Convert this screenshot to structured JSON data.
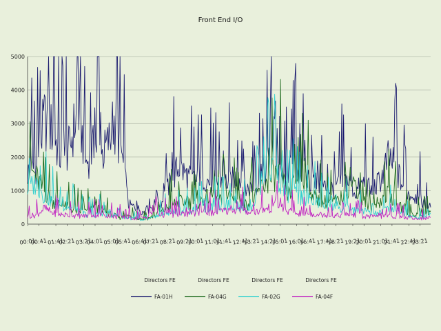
{
  "chart_data": {
    "type": "line",
    "title": "Front End I/O",
    "xlabel": "",
    "ylabel": "",
    "ylim": [
      0,
      5000
    ],
    "yticks": [
      0,
      1000,
      2000,
      3000,
      4000,
      5000
    ],
    "grid": true,
    "legend_position": "bottom",
    "x_tick_labels": [
      "00:01",
      "00:41",
      "01:41",
      "02:21",
      "03:21",
      "04:01",
      "05:01",
      "05:41",
      "06:41",
      "07:21",
      "08:21",
      "09:21",
      "10:01",
      "11:01",
      "11:41",
      "12:41",
      "13:21",
      "14:21",
      "15:01",
      "16:01",
      "16:41",
      "17:41",
      "18:21",
      "19:21",
      "20:01",
      "21:01",
      "21:41",
      "22:41",
      "23:21"
    ],
    "x_tick_times": [
      "00:01",
      "00:41",
      "01:41",
      "02:21",
      "03:21",
      "04:01",
      "05:01",
      "05:41",
      "06:41",
      "07:21",
      "08:21",
      "09:21",
      "10:01",
      "11:01",
      "11:41",
      "12:41",
      "13:21",
      "14:21",
      "15:01",
      "16:01",
      "16:41",
      "17:41",
      "18:21",
      "19:21",
      "20:01",
      "21:01",
      "21:41",
      "22:41",
      "23:21"
    ],
    "x_times": [
      "00:00",
      "00:30",
      "01:00",
      "01:30",
      "02:00",
      "02:30",
      "03:00",
      "03:30",
      "04:00",
      "04:30",
      "05:00",
      "05:30",
      "06:00",
      "06:30",
      "07:00",
      "07:30",
      "08:00",
      "08:30",
      "09:00",
      "09:30",
      "10:00",
      "10:30",
      "11:00",
      "11:30",
      "12:00",
      "12:30",
      "13:00",
      "13:30",
      "14:00",
      "14:30",
      "15:00",
      "15:30",
      "16:00",
      "16:30",
      "17:00",
      "17:30",
      "18:00",
      "18:30",
      "19:00",
      "19:30",
      "20:00",
      "20:30",
      "21:00",
      "21:30",
      "22:00",
      "22:30",
      "23:00",
      "23:30",
      "23:59"
    ],
    "series": [
      {
        "group": "Directors FE",
        "name": "FA-01H",
        "color": "#1a1a6e",
        "values": [
          1600,
          1800,
          3300,
          2900,
          2000,
          2400,
          3600,
          1900,
          2500,
          2200,
          2800,
          2600,
          600,
          500,
          350,
          600,
          700,
          1300,
          1800,
          1500,
          1300,
          1500,
          1200,
          1400,
          1300,
          1500,
          1100,
          1200,
          1400,
          2200,
          1500,
          1200,
          1800,
          1500,
          1300,
          1200,
          1100,
          1200,
          1400,
          1000,
          1300,
          1000,
          1400,
          2100,
          1600,
          1000,
          900,
          700,
          500
        ]
      },
      {
        "group": "Directors FE",
        "name": "FA-04G",
        "color": "#1f6b1f",
        "values": [
          1800,
          1500,
          1000,
          700,
          600,
          500,
          400,
          400,
          500,
          400,
          300,
          200,
          250,
          200,
          150,
          250,
          400,
          600,
          700,
          700,
          600,
          800,
          900,
          700,
          900,
          800,
          600,
          800,
          1200,
          1400,
          1600,
          900,
          1400,
          1500,
          900,
          700,
          700,
          700,
          1100,
          1300,
          600,
          500,
          700,
          1000,
          600,
          400,
          300,
          300,
          400
        ]
      },
      {
        "group": "Directors FE",
        "name": "FA-02G",
        "color": "#2fd0cf",
        "values": [
          1100,
          1300,
          900,
          700,
          600,
          500,
          400,
          300,
          300,
          350,
          300,
          250,
          200,
          150,
          100,
          200,
          300,
          350,
          400,
          400,
          450,
          500,
          500,
          500,
          600,
          600,
          500,
          700,
          1600,
          1800,
          1400,
          900,
          900,
          800,
          700,
          650,
          500,
          450,
          500,
          400,
          450,
          300,
          350,
          500,
          400,
          300,
          200,
          200,
          300
        ]
      },
      {
        "group": "Directors FE",
        "name": "FA-04F",
        "color": "#c020c0",
        "values": [
          250,
          280,
          500,
          350,
          300,
          280,
          250,
          260,
          280,
          300,
          250,
          220,
          200,
          180,
          200,
          350,
          300,
          280,
          300,
          320,
          330,
          350,
          350,
          400,
          420,
          450,
          400,
          380,
          450,
          500,
          550,
          400,
          350,
          300,
          320,
          300,
          280,
          270,
          300,
          280,
          250,
          230,
          220,
          250,
          240,
          200,
          180,
          180,
          200
        ]
      }
    ]
  }
}
